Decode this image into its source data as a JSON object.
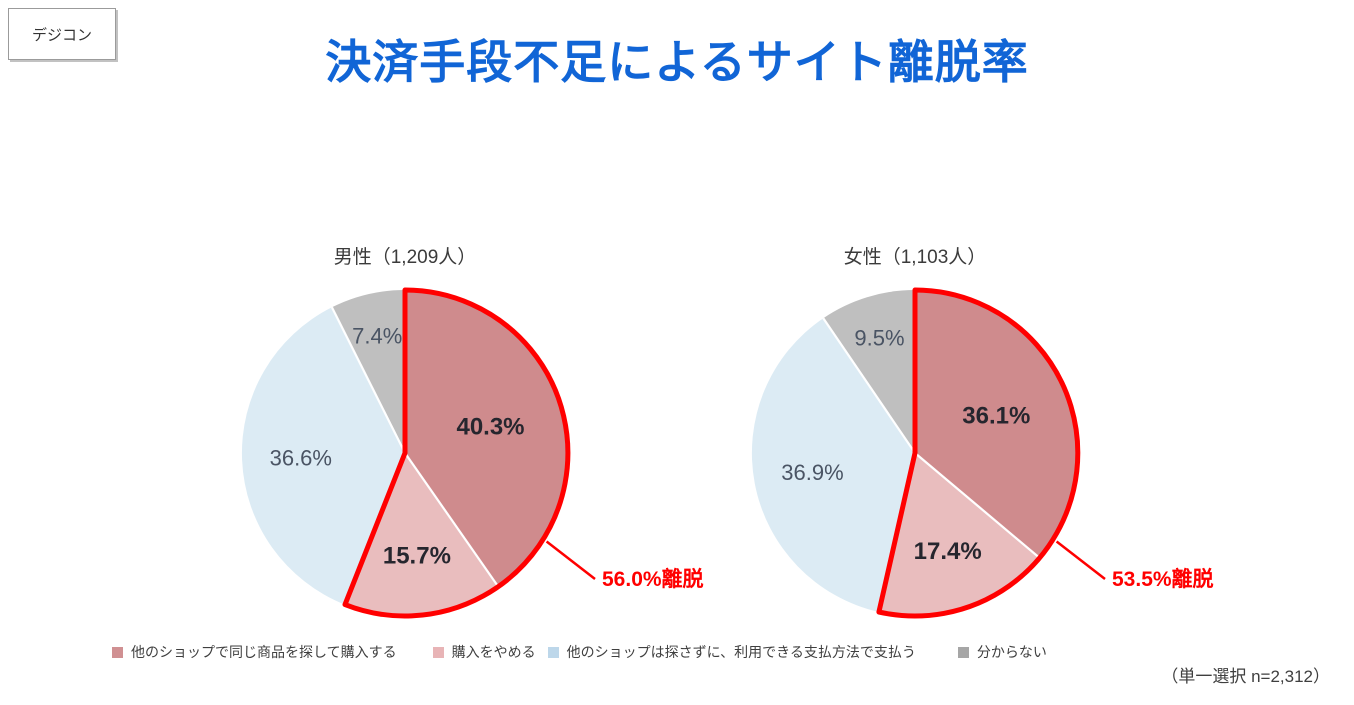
{
  "badge": {
    "label": "デジコン"
  },
  "header": {
    "title": "決済手段不足によるサイト離脱率",
    "title_color": "#1165d6"
  },
  "legend": {
    "items": [
      {
        "label": "他のショップで同じ商品を探して購入する",
        "color": "#d09092"
      },
      {
        "label": "購入をやめる",
        "color": "#e8b4b6"
      },
      {
        "label": "他のショップは探さずに、利用できる支払方法で支払う",
        "color": "#bdd7ea"
      },
      {
        "label": "分からない",
        "color": "#a6a6a6"
      }
    ]
  },
  "footer": {
    "note": "（単一選択 n=2,312）"
  },
  "styles": {
    "accent_red": "#ff0000",
    "label_highlight_color": "#26262e",
    "label_normal_color": "#4a5464",
    "pie_title_color": "#3b3b3b"
  },
  "chart_data": [
    {
      "type": "pie",
      "title": "男性（1,209人）",
      "categories": [
        "他のショップで同じ商品を探して購入する",
        "購入をやめる",
        "他のショップは探さずに、利用できる支払方法で支払う",
        "分からない"
      ],
      "values": [
        40.3,
        15.7,
        36.6,
        7.4
      ],
      "colors": [
        "#cf8b8d",
        "#e9bdbe",
        "#dcebf4",
        "#bfbfbf"
      ],
      "start_angle_deg": 0,
      "direction": "clockwise",
      "highlight": {
        "slice_indexes": [
          0,
          1
        ],
        "outline_color": "#ff0000",
        "annotation": "56.0%離脱"
      }
    },
    {
      "type": "pie",
      "title": "女性（1,103人）",
      "categories": [
        "他のショップで同じ商品を探して購入する",
        "購入をやめる",
        "他のショップは探さずに、利用できる支払方法で支払う",
        "分からない"
      ],
      "values": [
        36.1,
        17.4,
        36.9,
        9.5
      ],
      "colors": [
        "#cf8b8d",
        "#e9bdbe",
        "#dcebf4",
        "#bfbfbf"
      ],
      "start_angle_deg": 0,
      "direction": "clockwise",
      "highlight": {
        "slice_indexes": [
          0,
          1
        ],
        "outline_color": "#ff0000",
        "annotation": "53.5%離脱"
      }
    }
  ]
}
